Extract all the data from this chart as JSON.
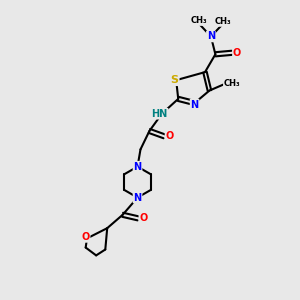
{
  "background_color": "#e8e8e8",
  "atom_colors": {
    "C": "#000000",
    "N": "#0000ff",
    "O": "#ff0000",
    "S": "#ccaa00",
    "H": "#008080"
  },
  "figsize": [
    3.0,
    3.0
  ],
  "dpi": 100,
  "xlim": [
    0,
    10
  ],
  "ylim": [
    0,
    10
  ]
}
